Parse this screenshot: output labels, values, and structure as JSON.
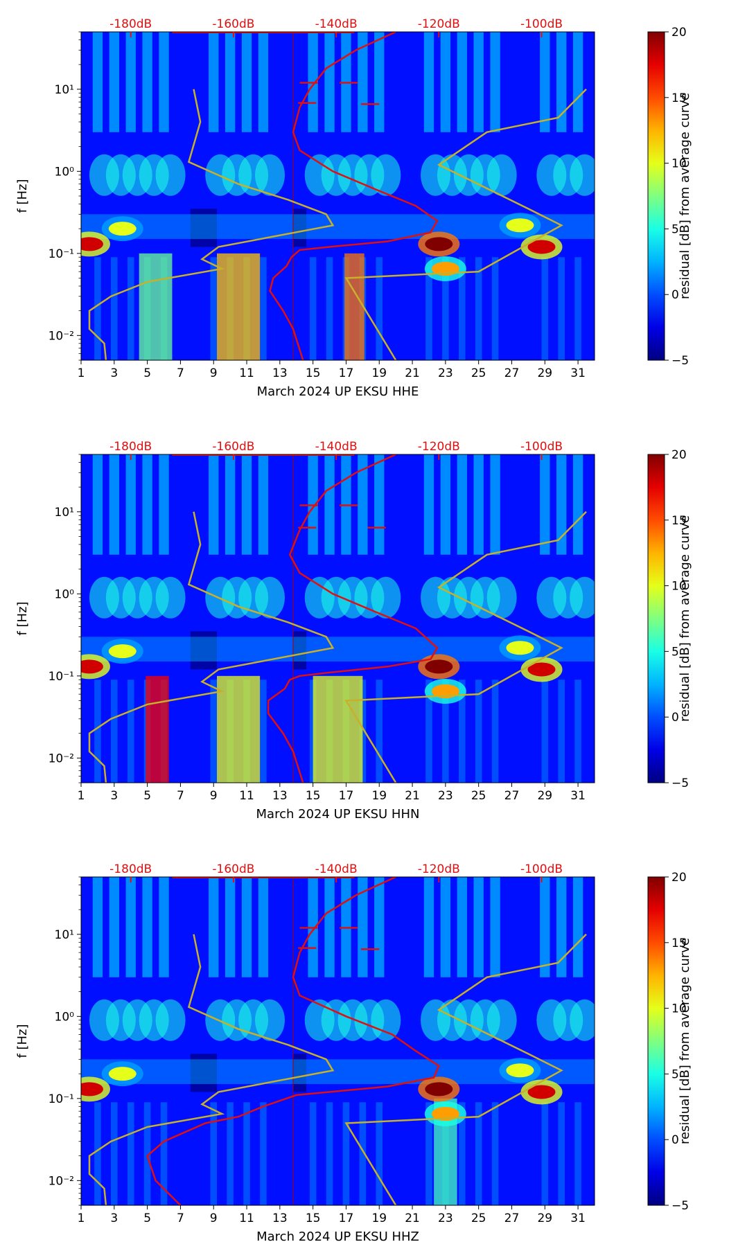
{
  "chart_data": [
    {
      "type": "heatmap",
      "panel": "HHE",
      "xlabel": "March 2024 UP EKSU  HHE",
      "ylabel": "f [Hz]",
      "x_ticks": [
        1,
        3,
        5,
        7,
        9,
        11,
        13,
        15,
        17,
        19,
        21,
        23,
        25,
        27,
        29,
        31
      ],
      "xlim": [
        1,
        32
      ],
      "y_ticks": [
        {
          "value": 10,
          "label": "10¹"
        },
        {
          "value": 1,
          "label": "10⁰"
        },
        {
          "value": 0.1,
          "label": "10⁻¹"
        },
        {
          "value": 0.01,
          "label": "10⁻²"
        }
      ],
      "ylim": [
        0.005,
        50
      ],
      "top_ticks": [
        {
          "day": 4,
          "label": "-180dB"
        },
        {
          "day": 10.2,
          "label": "-160dB"
        },
        {
          "day": 16.4,
          "label": "-140dB"
        },
        {
          "day": 22.6,
          "label": "-120dB"
        },
        {
          "day": 28.8,
          "label": "-100dB"
        }
      ],
      "colorbar": {
        "label": "residual [dB] from average curve",
        "min": -5,
        "max": 20,
        "ticks": [
          {
            "value": 20,
            "label": "20"
          },
          {
            "value": 15,
            "label": "15"
          },
          {
            "value": 10,
            "label": "10"
          },
          {
            "value": 5,
            "label": "5"
          },
          {
            "value": 0,
            "label": "0"
          },
          {
            "value": -5,
            "label": "−5"
          }
        ]
      },
      "night_days": [
        2,
        3,
        4,
        5,
        6,
        9,
        10,
        11,
        12,
        15,
        16,
        17,
        18,
        19,
        22,
        23,
        24,
        25,
        26,
        29,
        30,
        31
      ],
      "hotspots": [
        {
          "day": 1.5,
          "f": 0.13,
          "v": 18
        },
        {
          "day": 22.6,
          "f": 0.13,
          "v": 22
        },
        {
          "day": 28.8,
          "f": 0.12,
          "v": 18
        },
        {
          "day": 3.5,
          "f": 0.2,
          "v": 10
        },
        {
          "day": 27.5,
          "f": 0.22,
          "v": 10
        },
        {
          "day": 23,
          "f": 0.065,
          "v": 13
        }
      ],
      "low_bands": [
        {
          "day": 10.5,
          "width": 2.6,
          "v": 12
        },
        {
          "day": 17.5,
          "width": 1.2,
          "v": 14
        },
        {
          "day": 5.5,
          "width": 2.0,
          "v": 7
        }
      ],
      "red_curve": [
        [
          20,
          50
        ],
        [
          17.6,
          30
        ],
        [
          15.8,
          18
        ],
        [
          14.8,
          10
        ],
        [
          14.2,
          6
        ],
        [
          13.8,
          3
        ],
        [
          14.2,
          1.8
        ],
        [
          16.2,
          1.0
        ],
        [
          18.8,
          0.6
        ],
        [
          21.2,
          0.38
        ],
        [
          22.5,
          0.25
        ],
        [
          22.1,
          0.18
        ],
        [
          19.5,
          0.14
        ],
        [
          16,
          0.12
        ],
        [
          14.2,
          0.11
        ],
        [
          13.7,
          0.09
        ],
        [
          13.4,
          0.07
        ],
        [
          12.6,
          0.05
        ],
        [
          12.4,
          0.035
        ],
        [
          13.2,
          0.02
        ],
        [
          13.8,
          0.012
        ],
        [
          14.4,
          0.005
        ]
      ],
      "red_spikes": [
        [
          15.3,
          12
        ],
        [
          17.7,
          12
        ],
        [
          15.2,
          6.8
        ],
        [
          19,
          6.6
        ]
      ],
      "yellow_curve": [
        [
          2.5,
          0.005
        ],
        [
          2.4,
          0.008
        ],
        [
          1.5,
          0.012
        ],
        [
          1.5,
          0.02
        ],
        [
          2.8,
          0.03
        ],
        [
          5,
          0.045
        ],
        [
          9.5,
          0.065
        ],
        [
          8.3,
          0.085
        ],
        [
          9.3,
          0.12
        ],
        [
          16.2,
          0.22
        ],
        [
          15.8,
          0.3
        ],
        [
          13.5,
          0.45
        ],
        [
          10.5,
          0.7
        ],
        [
          7.5,
          1.3
        ],
        [
          8.2,
          4
        ],
        [
          7.8,
          10
        ]
      ],
      "yellow_curve2": [
        [
          20,
          0.005
        ],
        [
          17,
          0.05
        ],
        [
          25,
          0.06
        ],
        [
          30,
          0.22
        ],
        [
          28,
          0.35
        ],
        [
          22.6,
          1.2
        ],
        [
          25.5,
          3
        ],
        [
          29.8,
          4.5
        ],
        [
          31.5,
          10
        ]
      ]
    },
    {
      "type": "heatmap",
      "panel": "HHN",
      "xlabel": "March 2024 UP EKSU  HHN",
      "ylabel": "f [Hz]",
      "x_ticks": [
        1,
        3,
        5,
        7,
        9,
        11,
        13,
        15,
        17,
        19,
        21,
        23,
        25,
        27,
        29,
        31
      ],
      "xlim": [
        1,
        32
      ],
      "y_ticks": [
        {
          "value": 10,
          "label": "10¹"
        },
        {
          "value": 1,
          "label": "10⁰"
        },
        {
          "value": 0.1,
          "label": "10⁻¹"
        },
        {
          "value": 0.01,
          "label": "10⁻²"
        }
      ],
      "ylim": [
        0.005,
        50
      ],
      "top_ticks": [
        {
          "day": 4,
          "label": "-180dB"
        },
        {
          "day": 10.2,
          "label": "-160dB"
        },
        {
          "day": 16.4,
          "label": "-140dB"
        },
        {
          "day": 22.6,
          "label": "-120dB"
        },
        {
          "day": 28.8,
          "label": "-100dB"
        }
      ],
      "colorbar": {
        "label": "residual [dB] from average curve",
        "min": -5,
        "max": 20,
        "ticks": [
          {
            "value": 20,
            "label": "20"
          },
          {
            "value": 15,
            "label": "15"
          },
          {
            "value": 10,
            "label": "10"
          },
          {
            "value": 5,
            "label": "5"
          },
          {
            "value": 0,
            "label": "0"
          },
          {
            "value": -5,
            "label": "−5"
          }
        ]
      },
      "night_days": [
        2,
        3,
        4,
        5,
        6,
        9,
        10,
        11,
        12,
        15,
        16,
        17,
        18,
        19,
        22,
        23,
        24,
        25,
        26,
        29,
        30,
        31
      ],
      "hotspots": [
        {
          "day": 1.5,
          "f": 0.13,
          "v": 18
        },
        {
          "day": 22.6,
          "f": 0.13,
          "v": 22
        },
        {
          "day": 28.8,
          "f": 0.12,
          "v": 18
        },
        {
          "day": 3.5,
          "f": 0.2,
          "v": 10
        },
        {
          "day": 27.5,
          "f": 0.22,
          "v": 10
        },
        {
          "day": 23,
          "f": 0.065,
          "v": 13
        }
      ],
      "low_bands": [
        {
          "day": 5.6,
          "width": 1.4,
          "v": 17
        },
        {
          "day": 10.5,
          "width": 2.6,
          "v": 10
        },
        {
          "day": 16.5,
          "width": 3.0,
          "v": 10
        }
      ],
      "red_curve": [
        [
          20,
          50
        ],
        [
          17.6,
          30
        ],
        [
          15.8,
          18
        ],
        [
          14.8,
          10
        ],
        [
          14.2,
          6
        ],
        [
          13.6,
          3
        ],
        [
          14.2,
          1.8
        ],
        [
          16.2,
          1.0
        ],
        [
          18.8,
          0.6
        ],
        [
          21.2,
          0.38
        ],
        [
          22.5,
          0.22
        ],
        [
          22.1,
          0.16
        ],
        [
          19.5,
          0.13
        ],
        [
          16,
          0.11
        ],
        [
          14.2,
          0.1
        ],
        [
          13.6,
          0.09
        ],
        [
          13.3,
          0.07
        ],
        [
          12.3,
          0.05
        ],
        [
          12.3,
          0.035
        ],
        [
          13.2,
          0.02
        ],
        [
          13.8,
          0.012
        ],
        [
          14.4,
          0.005
        ]
      ],
      "red_spikes": [
        [
          15.3,
          12
        ],
        [
          17.7,
          12
        ],
        [
          15.2,
          6.4
        ],
        [
          19.4,
          6.4
        ]
      ],
      "yellow_curve": [
        [
          2.5,
          0.005
        ],
        [
          2.4,
          0.008
        ],
        [
          1.5,
          0.012
        ],
        [
          1.5,
          0.02
        ],
        [
          2.8,
          0.03
        ],
        [
          5,
          0.045
        ],
        [
          9.5,
          0.065
        ],
        [
          8.3,
          0.085
        ],
        [
          9.3,
          0.12
        ],
        [
          16.2,
          0.22
        ],
        [
          15.8,
          0.3
        ],
        [
          13.5,
          0.45
        ],
        [
          10.5,
          0.7
        ],
        [
          7.5,
          1.3
        ],
        [
          8.2,
          4
        ],
        [
          7.8,
          10
        ]
      ],
      "yellow_curve2": [
        [
          20,
          0.005
        ],
        [
          17,
          0.05
        ],
        [
          25,
          0.06
        ],
        [
          30,
          0.22
        ],
        [
          28,
          0.35
        ],
        [
          22.6,
          1.2
        ],
        [
          25.5,
          3
        ],
        [
          29.8,
          4.5
        ],
        [
          31.5,
          10
        ]
      ]
    },
    {
      "type": "heatmap",
      "panel": "HHZ",
      "xlabel": "March 2024 UP EKSU  HHZ",
      "ylabel": "f [Hz]",
      "x_ticks": [
        1,
        3,
        5,
        7,
        9,
        11,
        13,
        15,
        17,
        19,
        21,
        23,
        25,
        27,
        29,
        31
      ],
      "xlim": [
        1,
        32
      ],
      "y_ticks": [
        {
          "value": 10,
          "label": "10¹"
        },
        {
          "value": 1,
          "label": "10⁰"
        },
        {
          "value": 0.1,
          "label": "10⁻¹"
        },
        {
          "value": 0.01,
          "label": "10⁻²"
        }
      ],
      "ylim": [
        0.005,
        50
      ],
      "top_ticks": [
        {
          "day": 4,
          "label": "-180dB"
        },
        {
          "day": 10.2,
          "label": "-160dB"
        },
        {
          "day": 16.4,
          "label": "-140dB"
        },
        {
          "day": 22.6,
          "label": "-120dB"
        },
        {
          "day": 28.8,
          "label": "-100dB"
        }
      ],
      "colorbar": {
        "label": "residual [dB] from average curve",
        "min": -5,
        "max": 20,
        "ticks": [
          {
            "value": 20,
            "label": "20"
          },
          {
            "value": 15,
            "label": "15"
          },
          {
            "value": 10,
            "label": "10"
          },
          {
            "value": 5,
            "label": "5"
          },
          {
            "value": 0,
            "label": "0"
          },
          {
            "value": -5,
            "label": "−5"
          }
        ]
      },
      "night_days": [
        2,
        3,
        4,
        5,
        6,
        9,
        10,
        11,
        12,
        15,
        16,
        17,
        18,
        19,
        22,
        23,
        24,
        25,
        26,
        29,
        30,
        31
      ],
      "hotspots": [
        {
          "day": 1.5,
          "f": 0.13,
          "v": 18
        },
        {
          "day": 22.6,
          "f": 0.13,
          "v": 22
        },
        {
          "day": 28.8,
          "f": 0.12,
          "v": 18
        },
        {
          "day": 3.5,
          "f": 0.2,
          "v": 10
        },
        {
          "day": 27.5,
          "f": 0.22,
          "v": 10
        },
        {
          "day": 23,
          "f": 0.065,
          "v": 13
        }
      ],
      "low_bands": [
        {
          "day": 23,
          "width": 1.4,
          "v": 6
        }
      ],
      "red_curve": [
        [
          20,
          50
        ],
        [
          17.6,
          30
        ],
        [
          15.8,
          18
        ],
        [
          14.8,
          10
        ],
        [
          14.2,
          6
        ],
        [
          13.8,
          3
        ],
        [
          14.2,
          1.8
        ],
        [
          17,
          1.0
        ],
        [
          19.8,
          0.6
        ],
        [
          21.2,
          0.38
        ],
        [
          22.6,
          0.25
        ],
        [
          22.3,
          0.18
        ],
        [
          19.5,
          0.14
        ],
        [
          16,
          0.12
        ],
        [
          14,
          0.11
        ],
        [
          12,
          0.08
        ],
        [
          10.5,
          0.06
        ],
        [
          8.5,
          0.05
        ],
        [
          6,
          0.03
        ],
        [
          5,
          0.02
        ],
        [
          5.5,
          0.01
        ],
        [
          7,
          0.005
        ]
      ],
      "red_spikes": [
        [
          15.3,
          12
        ],
        [
          17.7,
          12
        ],
        [
          15.2,
          6.8
        ],
        [
          19,
          6.6
        ]
      ],
      "yellow_curve": [
        [
          2.5,
          0.005
        ],
        [
          2.4,
          0.008
        ],
        [
          1.5,
          0.012
        ],
        [
          1.5,
          0.02
        ],
        [
          2.8,
          0.03
        ],
        [
          5,
          0.045
        ],
        [
          9.5,
          0.065
        ],
        [
          8.3,
          0.085
        ],
        [
          9.3,
          0.12
        ],
        [
          16.2,
          0.22
        ],
        [
          15.8,
          0.3
        ],
        [
          13.5,
          0.45
        ],
        [
          10.5,
          0.7
        ],
        [
          7.5,
          1.3
        ],
        [
          8.2,
          4
        ],
        [
          7.8,
          10
        ]
      ],
      "yellow_curve2": [
        [
          20,
          0.005
        ],
        [
          17,
          0.05
        ],
        [
          25,
          0.06
        ],
        [
          30,
          0.22
        ],
        [
          28,
          0.35
        ],
        [
          22.6,
          1.2
        ],
        [
          25.5,
          3
        ],
        [
          29.8,
          4.5
        ],
        [
          31.5,
          10
        ]
      ]
    }
  ]
}
